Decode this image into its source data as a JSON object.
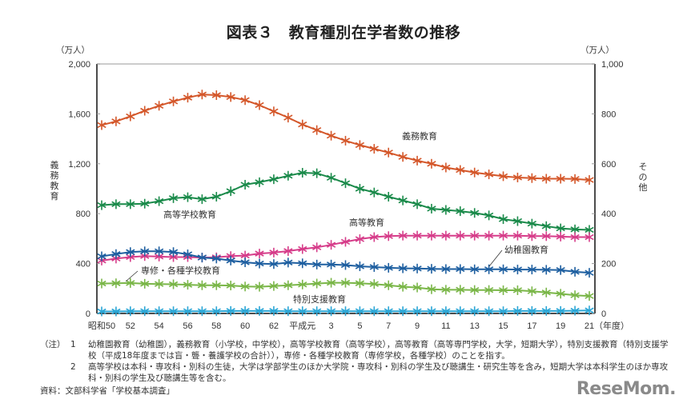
{
  "title": "図表３　教育種別在学者数の推移",
  "chart_data": {
    "type": "line",
    "title": "図表３　教育種別在学者数の推移",
    "x": [
      "昭和50",
      "51",
      "52",
      "53",
      "54",
      "55",
      "56",
      "57",
      "58",
      "59",
      "60",
      "61",
      "62",
      "63",
      "平成元",
      "2",
      "3",
      "4",
      "5",
      "6",
      "7",
      "8",
      "9",
      "10",
      "11",
      "12",
      "13",
      "14",
      "15",
      "16",
      "17",
      "18",
      "19",
      "20",
      "21"
    ],
    "x_tick_labels": [
      "昭和50",
      "52",
      "54",
      "56",
      "58",
      "60",
      "62",
      "平成元",
      "3",
      "5",
      "7",
      "9",
      "11",
      "13",
      "15",
      "17",
      "19",
      "21"
    ],
    "x_unit": "（年度）",
    "left_axis": {
      "label": "義務教育",
      "unit": "（万人）",
      "ylim": [
        0,
        2000
      ],
      "ticks": [
        "0",
        "400",
        "800",
        "1,200",
        "1,600",
        "2,000"
      ],
      "tick_values": [
        0,
        400,
        800,
        1200,
        1600,
        2000
      ]
    },
    "right_axis": {
      "label": "その他",
      "unit": "（万人）",
      "ylim": [
        0,
        1000
      ],
      "ticks": [
        "0",
        "200",
        "400",
        "600",
        "800",
        "1,000"
      ],
      "tick_values": [
        0,
        200,
        400,
        600,
        800,
        1000
      ]
    },
    "grid": false,
    "series": [
      {
        "name": "義務教育",
        "axis": "left",
        "color": "#d4572a",
        "values": [
          1510,
          1540,
          1580,
          1625,
          1665,
          1700,
          1730,
          1755,
          1750,
          1735,
          1710,
          1670,
          1620,
          1570,
          1515,
          1470,
          1425,
          1385,
          1350,
          1320,
          1290,
          1255,
          1225,
          1200,
          1170,
          1150,
          1130,
          1115,
          1100,
          1090,
          1085,
          1080,
          1080,
          1078,
          1070
        ]
      },
      {
        "name": "高等学校教育",
        "axis": "right",
        "color": "#1a8a4a",
        "values": [
          434,
          438,
          438,
          440,
          450,
          462,
          466,
          458,
          468,
          490,
          516,
          526,
          538,
          552,
          564,
          562,
          544,
          522,
          500,
          485,
          468,
          453,
          438,
          420,
          415,
          410,
          403,
          393,
          378,
          370,
          360,
          350,
          341,
          337,
          335
        ]
      },
      {
        "name": "高等教育",
        "axis": "right",
        "color": "#d63d8a",
        "values": [
          212,
          220,
          226,
          230,
          228,
          226,
          226,
          224,
          225,
          230,
          232,
          240,
          244,
          250,
          258,
          265,
          275,
          287,
          298,
          306,
          310,
          312,
          312,
          312,
          312,
          312,
          312,
          312,
          312,
          312,
          310,
          310,
          308,
          306,
          306
        ]
      },
      {
        "name": "幼稚園教育",
        "axis": "right",
        "color": "#1e5fa0",
        "values": [
          229,
          238,
          246,
          249,
          249,
          246,
          237,
          224,
          220,
          212,
          205,
          200,
          198,
          204,
          201,
          196,
          196,
          194,
          189,
          186,
          183,
          181,
          180,
          179,
          178,
          178,
          177,
          177,
          177,
          176,
          176,
          175,
          174,
          167,
          163
        ]
      },
      {
        "name": "専修・各種学校教育",
        "axis": "right",
        "color": "#7ab648",
        "values": [
          120,
          121,
          122,
          119,
          118,
          117,
          115,
          113,
          113,
          112,
          108,
          107,
          110,
          113,
          116,
          120,
          123,
          123,
          121,
          118,
          113,
          107,
          104,
          97,
          95,
          95,
          94,
          94,
          93,
          93,
          89,
          84,
          79,
          73,
          70
        ]
      },
      {
        "name": "特別支援教育",
        "axis": "right",
        "color": "#2aa6d6",
        "values": [
          8,
          8,
          9,
          9,
          9,
          9,
          9,
          9,
          9,
          10,
          10,
          10,
          10,
          9,
          9,
          9,
          9,
          9,
          9,
          9,
          9,
          9,
          9,
          9,
          9,
          9,
          9,
          9,
          9,
          10,
          10,
          10,
          10,
          11,
          12
        ]
      }
    ],
    "annotations": [
      {
        "text": "義務教育",
        "series": "義務教育"
      },
      {
        "text": "高等学校教育",
        "series": "高等学校教育"
      },
      {
        "text": "高等教育",
        "series": "高等教育"
      },
      {
        "text": "幼稚園教育",
        "series": "幼稚園教育"
      },
      {
        "text": "専修・各種学校教育",
        "series": "専修・各種学校教育"
      },
      {
        "text": "特別支援教育",
        "series": "特別支援教育"
      }
    ]
  },
  "notes": {
    "head": "（注）",
    "items": [
      {
        "num": "1",
        "text": "幼稚園教育（幼稚園），義務教育（小学校，中学校），高等学校教育（高等学校），高等教育（高等専門学校，大学，短期大学），特別支援教育（特別支援学校（平成18年度までは盲・聾・養護学校の合計）），専修・各種学校教育（専修学校，各種学校）のことを指す。"
      },
      {
        "num": "2",
        "text": "高等学校は本科・専攻科・別科の生徒，大学は学部学生のほか大学院・専攻科・別科の学生及び聴講生・研究生等を含み，短期大学は本科学生のほか専攻科・別科の学生及び聴講生等を含む。"
      }
    ]
  },
  "source": "資料：文部科学省「学校基本調査」",
  "logo": "ReseMom."
}
